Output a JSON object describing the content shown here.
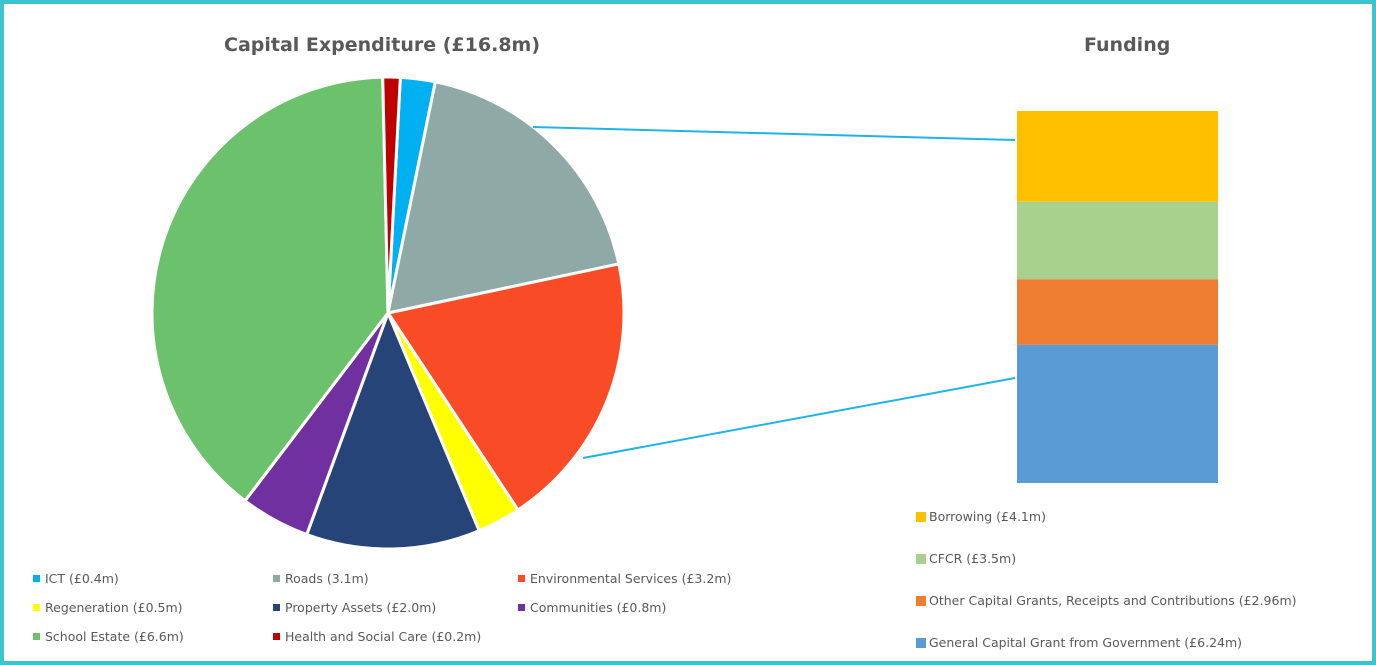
{
  "chart_data": [
    {
      "type": "pie",
      "title": "Capital Expenditure (£16.8m)",
      "unit": "£m",
      "slices": [
        {
          "label": "ICT (£0.4m)",
          "value": 0.4,
          "color": "#00b0f0"
        },
        {
          "label": "Roads (3.1m)",
          "value": 3.1,
          "color": "#8fa9a7"
        },
        {
          "label": "Environmental Services (£3.2m)",
          "value": 3.2,
          "color": "#f94b25"
        },
        {
          "label": "Regeneration (£0.5m)",
          "value": 0.5,
          "color": "#ffff00"
        },
        {
          "label": "Property Assets (£2.0m)",
          "value": 2.0,
          "color": "#264478"
        },
        {
          "label": "Communities (£0.8m)",
          "value": 0.8,
          "color": "#7030a0"
        },
        {
          "label": "School Estate (£6.6m)",
          "value": 6.6,
          "color": "#6cc16c"
        },
        {
          "label": "Health and Social Care (£0.2m)",
          "value": 0.2,
          "color": "#c00000"
        }
      ],
      "legend_position": "bottom"
    },
    {
      "type": "bar",
      "stacked": true,
      "title": "Funding",
      "unit": "£m",
      "series": [
        {
          "name": "Borrowing (£4.1m)",
          "value": 4.1,
          "color": "#ffc000"
        },
        {
          "name": "CFCR (£3.5m)",
          "value": 3.5,
          "color": "#a9d18e"
        },
        {
          "name": "Other Capital Grants, Receipts and Contributions (£2.96m)",
          "value": 2.96,
          "color": "#ed7d31"
        },
        {
          "name": "General Capital Grant from Government (£6.24m)",
          "value": 6.24,
          "color": "#5b9bd5"
        }
      ],
      "legend_position": "bottom"
    }
  ],
  "connector_color": "#1fb4e8",
  "border_color": "#3cc4cc"
}
